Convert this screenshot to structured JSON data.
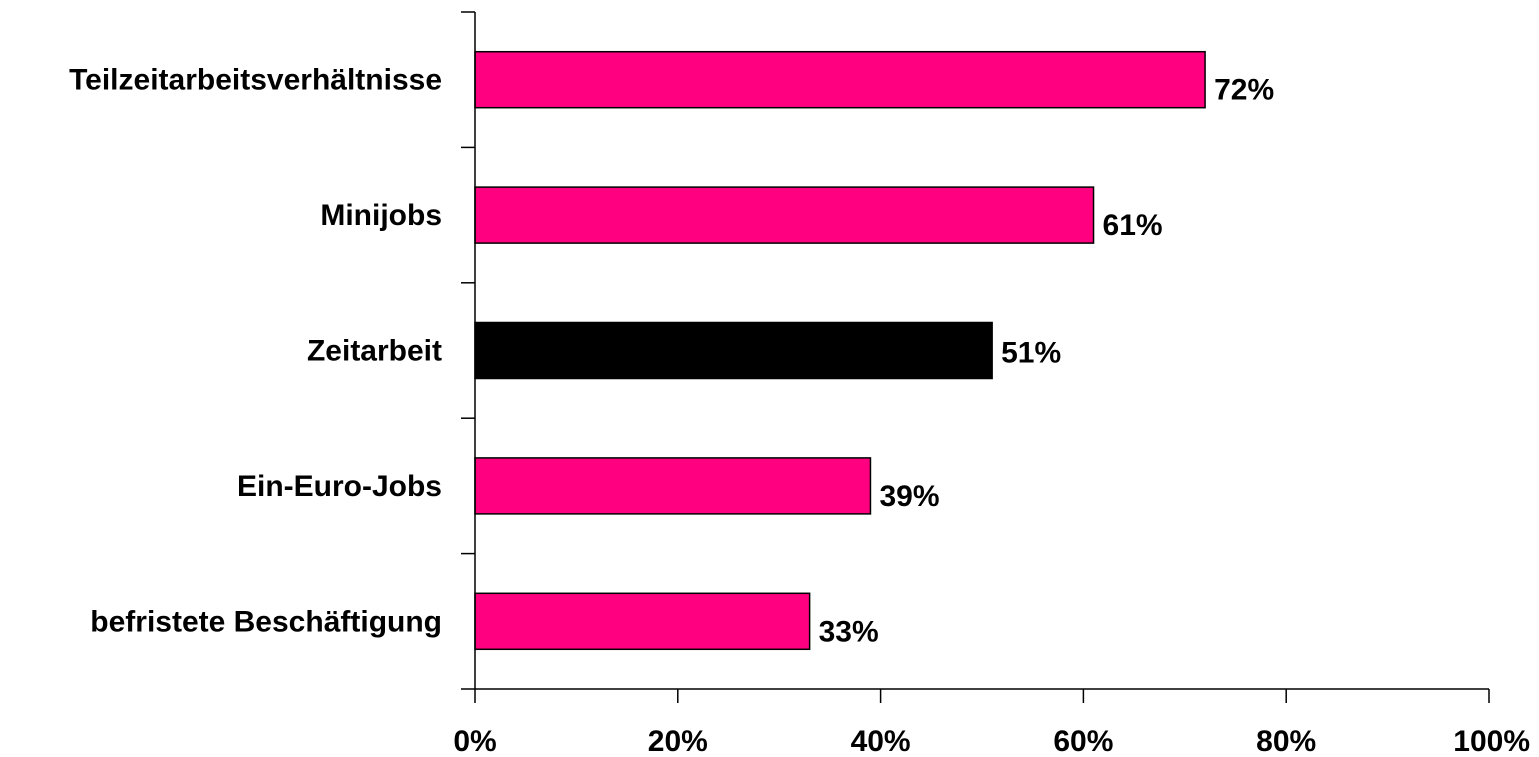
{
  "chart_data": {
    "type": "bar",
    "orientation": "horizontal",
    "categories": [
      "Teilzeitarbeitsverhältnisse",
      "Minijobs",
      "Zeitarbeit",
      "Ein-Euro-Jobs",
      "befristete Beschäftigung"
    ],
    "values": [
      72,
      61,
      51,
      39,
      33
    ],
    "value_labels": [
      "72%",
      "61%",
      "51%",
      "39%",
      "33%"
    ],
    "bar_colors": [
      "#FF0080",
      "#FF0080",
      "#000000",
      "#FF0080",
      "#FF0080"
    ],
    "xlim": [
      0,
      100
    ],
    "x_ticks": [
      0,
      20,
      40,
      60,
      80,
      100
    ],
    "x_tick_labels": [
      "0%",
      "20%",
      "40%",
      "60%",
      "80%",
      "100%"
    ],
    "grid": false,
    "legend": "none"
  }
}
